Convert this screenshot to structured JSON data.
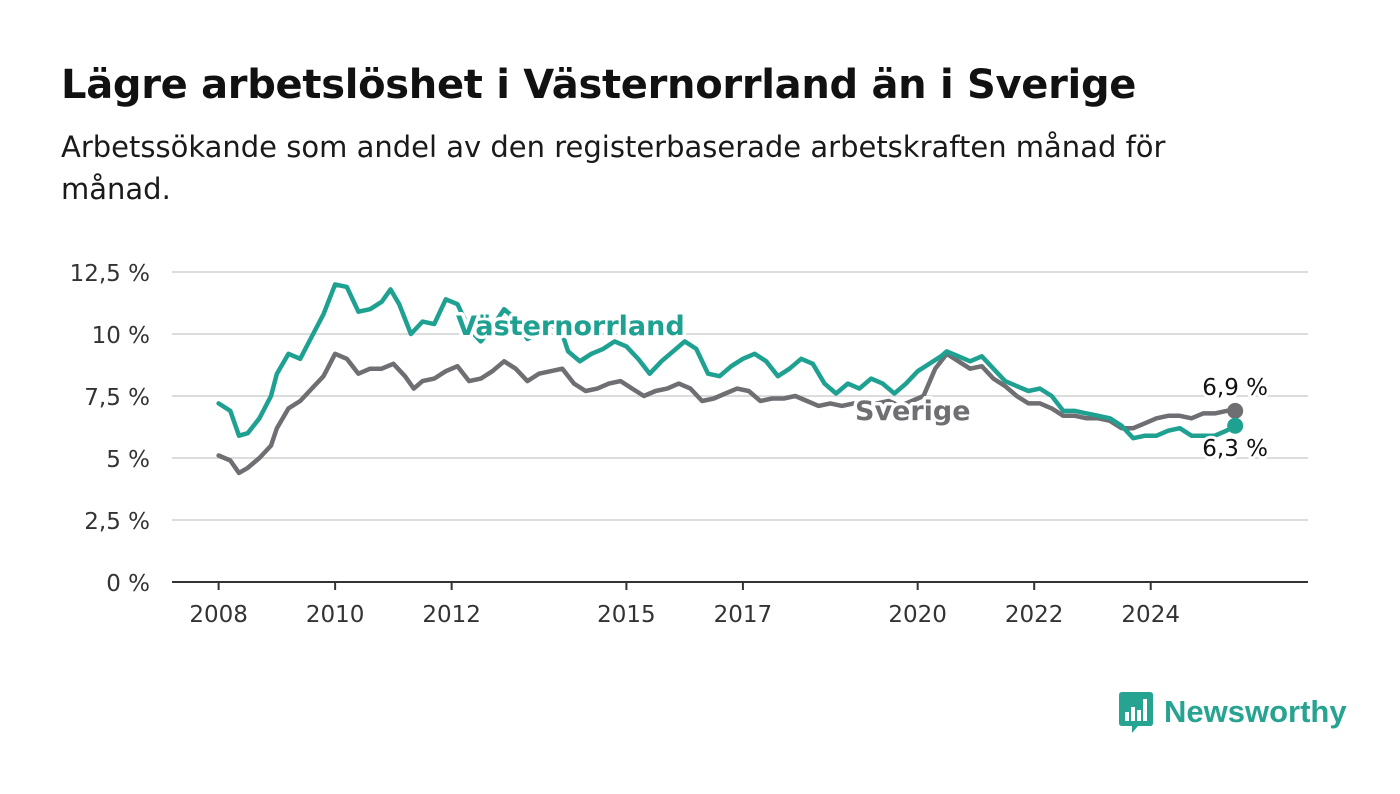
{
  "header": {
    "title": "Lägre arbetslöshet i Västernorrland än i Sverige",
    "subtitle": "Arbetssökande som andel av den registerbaserade arbetskraften månad för månad."
  },
  "brand": {
    "name": "Newsworthy",
    "color": "#27a391"
  },
  "chart_data": {
    "type": "line",
    "title": "Lägre arbetslöshet i Västernorrland än i Sverige",
    "subtitle": "Arbetssökande som andel av den registerbaserade arbetskraften månad för månad.",
    "xlabel": "",
    "ylabel": "",
    "x_range": [
      2007.2,
      2026.7
    ],
    "ylim": [
      0,
      12.5
    ],
    "y_ticks": [
      0,
      2.5,
      5,
      7.5,
      10,
      12.5
    ],
    "y_tick_labels": [
      "0 %",
      "2,5 %",
      "5 %",
      "7,5 %",
      "10 %",
      "12,5 %"
    ],
    "x_ticks": [
      2008,
      2010,
      2012,
      2015,
      2017,
      2020,
      2022,
      2024
    ],
    "x_tick_labels": [
      "2008",
      "2010",
      "2012",
      "2015",
      "2017",
      "2020",
      "2022",
      "2024"
    ],
    "grid": "horizontal",
    "series": [
      {
        "name": "Västernorrland",
        "color": "#1fa192",
        "end_label": "6,3 %",
        "points": [
          [
            2008.0,
            7.2
          ],
          [
            2008.2,
            6.9
          ],
          [
            2008.35,
            5.9
          ],
          [
            2008.5,
            6.0
          ],
          [
            2008.7,
            6.6
          ],
          [
            2008.9,
            7.5
          ],
          [
            2009.0,
            8.4
          ],
          [
            2009.2,
            9.2
          ],
          [
            2009.4,
            9.0
          ],
          [
            2009.6,
            9.9
          ],
          [
            2009.8,
            10.8
          ],
          [
            2010.0,
            12.0
          ],
          [
            2010.2,
            11.9
          ],
          [
            2010.4,
            10.9
          ],
          [
            2010.6,
            11.0
          ],
          [
            2010.8,
            11.3
          ],
          [
            2010.95,
            11.8
          ],
          [
            2011.1,
            11.2
          ],
          [
            2011.3,
            10.0
          ],
          [
            2011.5,
            10.5
          ],
          [
            2011.7,
            10.4
          ],
          [
            2011.9,
            11.4
          ],
          [
            2012.1,
            11.2
          ],
          [
            2012.3,
            10.2
          ],
          [
            2012.5,
            9.7
          ],
          [
            2012.7,
            10.3
          ],
          [
            2012.9,
            11.0
          ],
          [
            2013.1,
            10.6
          ],
          [
            2013.3,
            9.8
          ],
          [
            2013.5,
            10.1
          ],
          [
            2013.7,
            10.4
          ],
          [
            2013.9,
            10.0
          ],
          [
            2014.0,
            9.3
          ],
          [
            2014.2,
            8.9
          ],
          [
            2014.4,
            9.2
          ],
          [
            2014.6,
            9.4
          ],
          [
            2014.8,
            9.7
          ],
          [
            2015.0,
            9.5
          ],
          [
            2015.2,
            9.0
          ],
          [
            2015.4,
            8.4
          ],
          [
            2015.6,
            8.9
          ],
          [
            2015.8,
            9.3
          ],
          [
            2016.0,
            9.7
          ],
          [
            2016.2,
            9.4
          ],
          [
            2016.4,
            8.4
          ],
          [
            2016.6,
            8.3
          ],
          [
            2016.8,
            8.7
          ],
          [
            2017.0,
            9.0
          ],
          [
            2017.2,
            9.2
          ],
          [
            2017.4,
            8.9
          ],
          [
            2017.6,
            8.3
          ],
          [
            2017.8,
            8.6
          ],
          [
            2018.0,
            9.0
          ],
          [
            2018.2,
            8.8
          ],
          [
            2018.4,
            8.0
          ],
          [
            2018.6,
            7.6
          ],
          [
            2018.8,
            8.0
          ],
          [
            2019.0,
            7.8
          ],
          [
            2019.2,
            8.2
          ],
          [
            2019.4,
            8.0
          ],
          [
            2019.6,
            7.6
          ],
          [
            2019.8,
            8.0
          ],
          [
            2020.0,
            8.5
          ],
          [
            2020.2,
            8.8
          ],
          [
            2020.4,
            9.1
          ],
          [
            2020.5,
            9.3
          ],
          [
            2020.7,
            9.1
          ],
          [
            2020.9,
            8.9
          ],
          [
            2021.1,
            9.1
          ],
          [
            2021.3,
            8.6
          ],
          [
            2021.5,
            8.1
          ],
          [
            2021.7,
            7.9
          ],
          [
            2021.9,
            7.7
          ],
          [
            2022.1,
            7.8
          ],
          [
            2022.3,
            7.5
          ],
          [
            2022.5,
            6.9
          ],
          [
            2022.7,
            6.9
          ],
          [
            2022.9,
            6.8
          ],
          [
            2023.1,
            6.7
          ],
          [
            2023.3,
            6.6
          ],
          [
            2023.5,
            6.3
          ],
          [
            2023.7,
            5.8
          ],
          [
            2023.9,
            5.9
          ],
          [
            2024.1,
            5.9
          ],
          [
            2024.3,
            6.1
          ],
          [
            2024.5,
            6.2
          ],
          [
            2024.7,
            5.9
          ],
          [
            2024.9,
            5.9
          ],
          [
            2025.1,
            5.9
          ],
          [
            2025.3,
            6.1
          ],
          [
            2025.45,
            6.3
          ]
        ]
      },
      {
        "name": "Sverige",
        "color": "#6f6e73",
        "end_label": "6,9 %",
        "points": [
          [
            2008.0,
            5.1
          ],
          [
            2008.2,
            4.9
          ],
          [
            2008.35,
            4.4
          ],
          [
            2008.5,
            4.6
          ],
          [
            2008.7,
            5.0
          ],
          [
            2008.9,
            5.5
          ],
          [
            2009.0,
            6.2
          ],
          [
            2009.2,
            7.0
          ],
          [
            2009.4,
            7.3
          ],
          [
            2009.6,
            7.8
          ],
          [
            2009.8,
            8.3
          ],
          [
            2010.0,
            9.2
          ],
          [
            2010.2,
            9.0
          ],
          [
            2010.4,
            8.4
          ],
          [
            2010.6,
            8.6
          ],
          [
            2010.8,
            8.6
          ],
          [
            2011.0,
            8.8
          ],
          [
            2011.2,
            8.3
          ],
          [
            2011.35,
            7.8
          ],
          [
            2011.5,
            8.1
          ],
          [
            2011.7,
            8.2
          ],
          [
            2011.9,
            8.5
          ],
          [
            2012.1,
            8.7
          ],
          [
            2012.3,
            8.1
          ],
          [
            2012.5,
            8.2
          ],
          [
            2012.7,
            8.5
          ],
          [
            2012.9,
            8.9
          ],
          [
            2013.1,
            8.6
          ],
          [
            2013.3,
            8.1
          ],
          [
            2013.5,
            8.4
          ],
          [
            2013.7,
            8.5
          ],
          [
            2013.9,
            8.6
          ],
          [
            2014.1,
            8.0
          ],
          [
            2014.3,
            7.7
          ],
          [
            2014.5,
            7.8
          ],
          [
            2014.7,
            8.0
          ],
          [
            2014.9,
            8.1
          ],
          [
            2015.1,
            7.8
          ],
          [
            2015.3,
            7.5
          ],
          [
            2015.5,
            7.7
          ],
          [
            2015.7,
            7.8
          ],
          [
            2015.9,
            8.0
          ],
          [
            2016.1,
            7.8
          ],
          [
            2016.3,
            7.3
          ],
          [
            2016.5,
            7.4
          ],
          [
            2016.7,
            7.6
          ],
          [
            2016.9,
            7.8
          ],
          [
            2017.1,
            7.7
          ],
          [
            2017.3,
            7.3
          ],
          [
            2017.5,
            7.4
          ],
          [
            2017.7,
            7.4
          ],
          [
            2017.9,
            7.5
          ],
          [
            2018.1,
            7.3
          ],
          [
            2018.3,
            7.1
          ],
          [
            2018.5,
            7.2
          ],
          [
            2018.7,
            7.1
          ],
          [
            2018.9,
            7.2
          ],
          [
            2019.1,
            7.0
          ],
          [
            2019.3,
            7.2
          ],
          [
            2019.5,
            7.3
          ],
          [
            2019.7,
            7.1
          ],
          [
            2019.9,
            7.3
          ],
          [
            2020.1,
            7.5
          ],
          [
            2020.3,
            8.6
          ],
          [
            2020.5,
            9.2
          ],
          [
            2020.7,
            8.9
          ],
          [
            2020.9,
            8.6
          ],
          [
            2021.1,
            8.7
          ],
          [
            2021.3,
            8.2
          ],
          [
            2021.5,
            7.9
          ],
          [
            2021.7,
            7.5
          ],
          [
            2021.9,
            7.2
          ],
          [
            2022.1,
            7.2
          ],
          [
            2022.3,
            7.0
          ],
          [
            2022.5,
            6.7
          ],
          [
            2022.7,
            6.7
          ],
          [
            2022.9,
            6.6
          ],
          [
            2023.1,
            6.6
          ],
          [
            2023.3,
            6.5
          ],
          [
            2023.5,
            6.2
          ],
          [
            2023.7,
            6.2
          ],
          [
            2023.9,
            6.4
          ],
          [
            2024.1,
            6.6
          ],
          [
            2024.3,
            6.7
          ],
          [
            2024.5,
            6.7
          ],
          [
            2024.7,
            6.6
          ],
          [
            2024.9,
            6.8
          ],
          [
            2025.1,
            6.8
          ],
          [
            2025.3,
            6.9
          ],
          [
            2025.45,
            6.9
          ]
        ]
      }
    ]
  }
}
